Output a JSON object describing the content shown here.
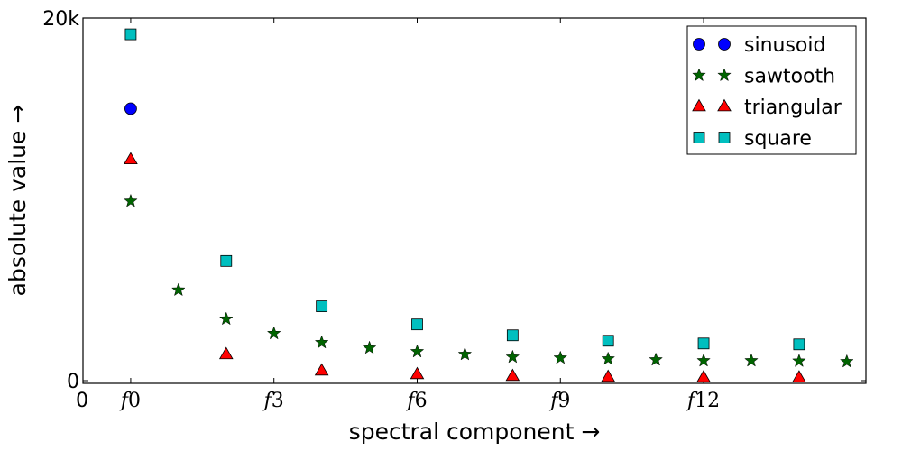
{
  "chart_data": {
    "type": "scatter",
    "xlabel": "spectral component →",
    "ylabel": "absolute value →",
    "xlim": [
      -1,
      15.4
    ],
    "ylim": [
      -150,
      20000
    ],
    "x_origin_label": "0",
    "xticks": [
      {
        "value": 0,
        "base": "f",
        "sub": "0"
      },
      {
        "value": 3,
        "base": "f",
        "sub": "3"
      },
      {
        "value": 6,
        "base": "f",
        "sub": "6"
      },
      {
        "value": 9,
        "base": "f",
        "sub": "9"
      },
      {
        "value": 12,
        "base": "f",
        "sub": "12"
      }
    ],
    "yticks": [
      {
        "value": 0,
        "label": "0"
      },
      {
        "value": 20000,
        "label": "20k"
      }
    ],
    "grid": false,
    "legend_position": "top-right",
    "series": [
      {
        "name": "sinusoid",
        "marker": "circle",
        "color": "#0000ff",
        "x": [
          0
        ],
        "y": [
          15000
        ]
      },
      {
        "name": "sawtooth",
        "marker": "star",
        "color": "#006400",
        "x": [
          0,
          1,
          2,
          3,
          4,
          5,
          6,
          7,
          8,
          9,
          10,
          11,
          12,
          13,
          14,
          15
        ],
        "y": [
          9900,
          5000,
          3400,
          2600,
          2100,
          1800,
          1600,
          1450,
          1300,
          1250,
          1200,
          1150,
          1100,
          1100,
          1080,
          1050
        ]
      },
      {
        "name": "triangular",
        "marker": "triangle",
        "color": "#ff0000",
        "x": [
          0,
          2,
          4,
          6,
          8,
          10,
          12,
          14
        ],
        "y": [
          12200,
          1450,
          550,
          350,
          250,
          200,
          180,
          170
        ]
      },
      {
        "name": "square",
        "marker": "square",
        "color": "#00bfbf",
        "x": [
          0,
          2,
          4,
          6,
          8,
          10,
          12,
          14
        ],
        "y": [
          19100,
          6600,
          4100,
          3100,
          2500,
          2200,
          2050,
          2000
        ]
      }
    ]
  }
}
